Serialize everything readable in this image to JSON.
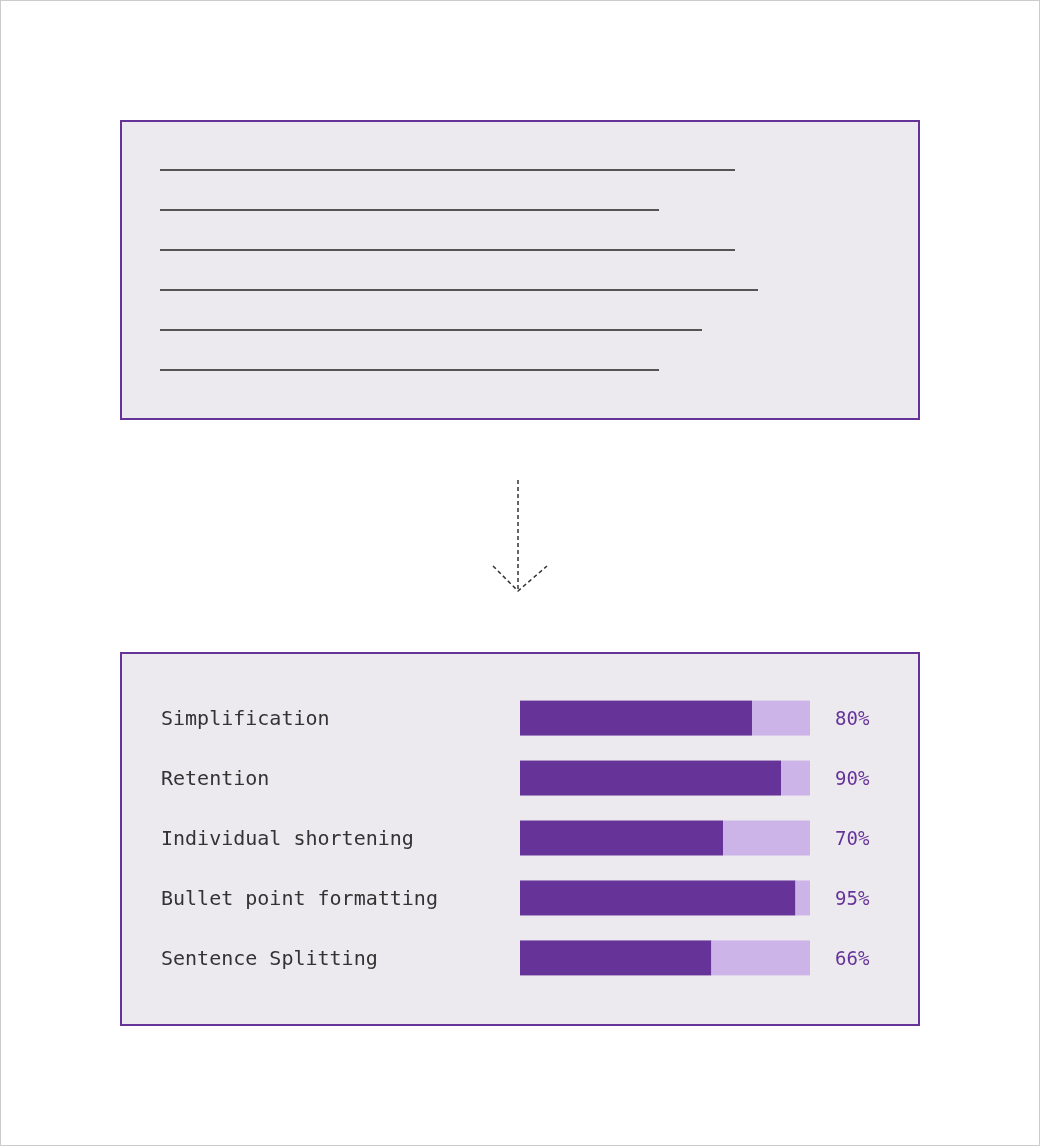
{
  "chart_data": {
    "type": "bar",
    "orientation": "horizontal",
    "stacked": true,
    "categories": [
      "Simplification",
      "Retention",
      "Individual shortening",
      "Bullet point formatting",
      "Sentence Splitting"
    ],
    "series": [
      {
        "color": "#663399",
        "values": [
          80,
          90,
          70,
          95,
          66
        ],
        "value_labels": [
          "80%",
          "90%",
          "70%",
          "95%",
          "66%"
        ]
      },
      {
        "color": "#cdb4e8",
        "values": [
          20,
          10,
          30,
          5,
          34
        ]
      }
    ],
    "xlim": [
      0,
      100
    ],
    "tick_labels": "y"
  }
}
